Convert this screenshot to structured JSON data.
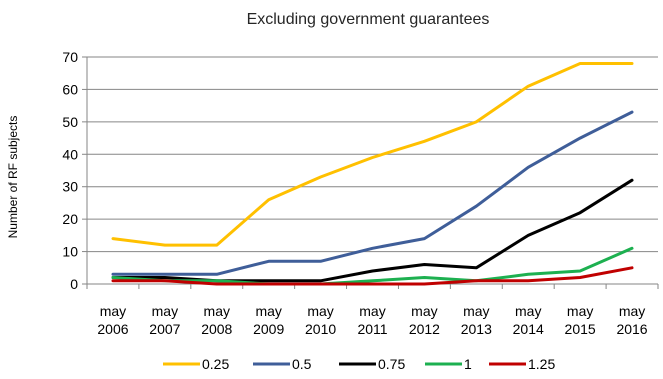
{
  "chart_data": {
    "type": "line",
    "title": "Excluding government guarantees",
    "xlabel": "",
    "ylabel": "Number of RF subjects",
    "ylim": [
      0,
      70
    ],
    "yticks": [
      0,
      10,
      20,
      30,
      40,
      50,
      60,
      70
    ],
    "grid": true,
    "legend_position": "bottom",
    "categories": [
      [
        "may",
        "2006"
      ],
      [
        "may",
        "2007"
      ],
      [
        "may",
        "2008"
      ],
      [
        "may",
        "2009"
      ],
      [
        "may",
        "2010"
      ],
      [
        "may",
        "2011"
      ],
      [
        "may",
        "2012"
      ],
      [
        "may",
        "2013"
      ],
      [
        "may",
        "2014"
      ],
      [
        "may",
        "2015"
      ],
      [
        "may",
        "2016"
      ]
    ],
    "series": [
      {
        "name": "0.25",
        "color": "#FFC000",
        "values": [
          14,
          12,
          12,
          26,
          33,
          39,
          44,
          50,
          61,
          68,
          68
        ]
      },
      {
        "name": "0.5",
        "color": "#3F5E99",
        "values": [
          3,
          3,
          3,
          7,
          7,
          11,
          14,
          24,
          36,
          45,
          53
        ]
      },
      {
        "name": "0.75",
        "color": "#000000",
        "values": [
          2,
          2,
          1,
          1,
          1,
          4,
          6,
          5,
          15,
          22,
          32
        ]
      },
      {
        "name": "1",
        "color": "#1DB050",
        "values": [
          2,
          1,
          1,
          0,
          0,
          1,
          2,
          1,
          3,
          4,
          11
        ]
      },
      {
        "name": "1.25",
        "color": "#C00000",
        "values": [
          1,
          1,
          0,
          0,
          0,
          0,
          0,
          1,
          1,
          2,
          5
        ]
      }
    ]
  }
}
